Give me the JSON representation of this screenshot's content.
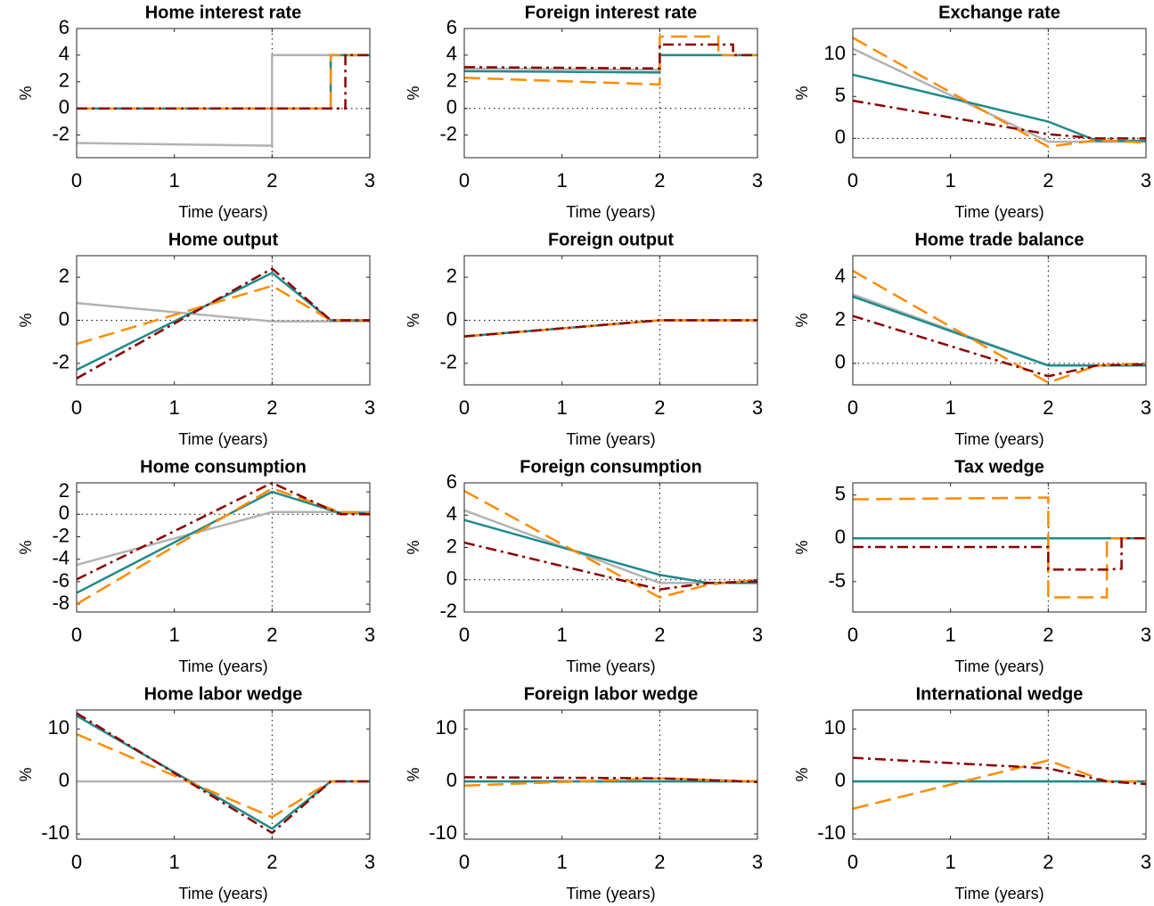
{
  "chart_data": [
    {
      "type": "line",
      "title": "Home interest rate",
      "xlabel": "Time (years)",
      "ylabel": "%",
      "xlim": [
        0,
        3
      ],
      "xticks": [
        0,
        1,
        2,
        3
      ],
      "ylim": [
        -3.7,
        6
      ],
      "yticks": [
        -2,
        0,
        2,
        4,
        6
      ],
      "hline": 0,
      "vline": 2,
      "x": [
        0,
        2,
        2,
        2.6,
        2.6,
        2.75,
        2.75,
        3
      ],
      "series": [
        {
          "color": "#b3b3b3",
          "dash": "solid",
          "values": [
            -2.6,
            -2.8,
            4,
            4,
            4,
            4,
            4,
            4
          ]
        },
        {
          "color": "#1f8a8a",
          "dash": "solid",
          "values": [
            0,
            0,
            0,
            0,
            4,
            4,
            4,
            4
          ]
        },
        {
          "color": "#ff8c00",
          "dash": "dashed",
          "values": [
            0,
            0,
            0,
            0,
            4,
            4,
            4,
            4
          ]
        },
        {
          "color": "#8b0000",
          "dash": "dashdot",
          "values": [
            0,
            0,
            0,
            0,
            0,
            0,
            4,
            4
          ]
        }
      ]
    },
    {
      "type": "line",
      "title": "Foreign interest rate",
      "xlabel": "Time (years)",
      "ylabel": "%",
      "xlim": [
        0,
        3
      ],
      "xticks": [
        0,
        1,
        2,
        3
      ],
      "ylim": [
        -3.7,
        6
      ],
      "yticks": [
        -2,
        0,
        2,
        4,
        6
      ],
      "hline": 0,
      "vline": 2,
      "x": [
        0,
        2,
        2,
        2.6,
        2.6,
        2.75,
        2.75,
        3
      ],
      "series": [
        {
          "color": "#b3b3b3",
          "dash": "solid",
          "values": [
            3.0,
            2.9,
            4,
            4,
            4,
            4,
            4,
            4
          ]
        },
        {
          "color": "#1f8a8a",
          "dash": "solid",
          "values": [
            2.8,
            2.7,
            4,
            4,
            4,
            4,
            4,
            4
          ]
        },
        {
          "color": "#ff8c00",
          "dash": "dashed",
          "values": [
            2.3,
            1.8,
            5.4,
            5.4,
            4,
            4,
            4,
            4
          ]
        },
        {
          "color": "#8b0000",
          "dash": "dashdot",
          "values": [
            3.1,
            3.0,
            4.8,
            4.8,
            4.8,
            4.8,
            4,
            4
          ]
        }
      ]
    },
    {
      "type": "line",
      "title": "Exchange rate",
      "xlabel": "Time (years)",
      "ylabel": "%",
      "xlim": [
        0,
        3
      ],
      "xticks": [
        0,
        1,
        2,
        3
      ],
      "ylim": [
        -2.3,
        13.1
      ],
      "yticks": [
        0,
        5,
        10
      ],
      "hline": 0,
      "vline": 2,
      "x": [
        0,
        2,
        2.5,
        3
      ],
      "series": [
        {
          "color": "#b3b3b3",
          "dash": "solid",
          "values": [
            10.7,
            -0.4,
            -0.4,
            -0.4
          ]
        },
        {
          "color": "#1f8a8a",
          "dash": "solid",
          "values": [
            7.6,
            2.0,
            -0.3,
            -0.3
          ]
        },
        {
          "color": "#ff8c00",
          "dash": "dashed",
          "values": [
            12.0,
            -1.0,
            -0.2,
            -0.5
          ]
        },
        {
          "color": "#8b0000",
          "dash": "dashdot",
          "values": [
            4.5,
            0.5,
            0,
            0
          ]
        }
      ]
    },
    {
      "type": "line",
      "title": "Home output",
      "xlabel": "Time (years)",
      "ylabel": "%",
      "xlim": [
        0,
        3
      ],
      "xticks": [
        0,
        1,
        2,
        3
      ],
      "ylim": [
        -3,
        3
      ],
      "yticks": [
        -2,
        0,
        2
      ],
      "hline": 0,
      "vline": 2,
      "x": [
        0,
        2,
        2.6,
        3
      ],
      "series": [
        {
          "color": "#b3b3b3",
          "dash": "solid",
          "values": [
            0.8,
            -0.05,
            -0.05,
            -0.05
          ]
        },
        {
          "color": "#1f8a8a",
          "dash": "solid",
          "values": [
            -2.3,
            2.2,
            0,
            0
          ]
        },
        {
          "color": "#ff8c00",
          "dash": "dashed",
          "values": [
            -1.1,
            1.6,
            0,
            0
          ]
        },
        {
          "color": "#8b0000",
          "dash": "dashdot",
          "values": [
            -2.7,
            2.4,
            0,
            0
          ]
        }
      ]
    },
    {
      "type": "line",
      "title": "Foreign output",
      "xlabel": "Time (years)",
      "ylabel": "%",
      "xlim": [
        0,
        3
      ],
      "xticks": [
        0,
        1,
        2,
        3
      ],
      "ylim": [
        -3,
        3
      ],
      "yticks": [
        -2,
        0,
        2
      ],
      "hline": 0,
      "vline": 2,
      "x": [
        0,
        2,
        3
      ],
      "series": [
        {
          "color": "#b3b3b3",
          "dash": "solid",
          "values": [
            -0.75,
            0,
            0
          ]
        },
        {
          "color": "#1f8a8a",
          "dash": "solid",
          "values": [
            -0.75,
            0,
            0
          ]
        },
        {
          "color": "#ff8c00",
          "dash": "dashed",
          "values": [
            -0.75,
            0,
            0
          ]
        },
        {
          "color": "#8b0000",
          "dash": "dashdot",
          "values": [
            -0.75,
            0,
            0
          ]
        }
      ]
    },
    {
      "type": "line",
      "title": "Home trade balance",
      "xlabel": "Time (years)",
      "ylabel": "%",
      "xlim": [
        0,
        3
      ],
      "xticks": [
        0,
        1,
        2,
        3
      ],
      "ylim": [
        -1,
        5
      ],
      "yticks": [
        0,
        2,
        4
      ],
      "hline": 0,
      "vline": 2,
      "x": [
        0,
        2,
        2.5,
        3
      ],
      "series": [
        {
          "color": "#b3b3b3",
          "dash": "solid",
          "values": [
            3.2,
            -0.1,
            -0.1,
            -0.1
          ]
        },
        {
          "color": "#1f8a8a",
          "dash": "solid",
          "values": [
            3.1,
            -0.1,
            -0.1,
            -0.1
          ]
        },
        {
          "color": "#ff8c00",
          "dash": "dashed",
          "values": [
            4.3,
            -0.9,
            -0.1,
            0
          ]
        },
        {
          "color": "#8b0000",
          "dash": "dashdot",
          "values": [
            2.2,
            -0.6,
            -0.1,
            -0.05
          ]
        }
      ]
    },
    {
      "type": "line",
      "title": "Home consumption",
      "xlabel": "Time (years)",
      "ylabel": "%",
      "xlim": [
        0,
        3
      ],
      "xticks": [
        0,
        1,
        2,
        3
      ],
      "ylim": [
        -8.7,
        2.8
      ],
      "yticks": [
        -8,
        -6,
        -4,
        -2,
        0,
        2
      ],
      "hline": 0,
      "vline": 2,
      "x": [
        0,
        2,
        2.7,
        3
      ],
      "series": [
        {
          "color": "#b3b3b3",
          "dash": "solid",
          "values": [
            -4.5,
            0.2,
            0.2,
            0.2
          ]
        },
        {
          "color": "#1f8a8a",
          "dash": "solid",
          "values": [
            -7.0,
            2.0,
            0.1,
            0.1
          ]
        },
        {
          "color": "#ff8c00",
          "dash": "dashed",
          "values": [
            -8.0,
            2.3,
            0.2,
            0.1
          ]
        },
        {
          "color": "#8b0000",
          "dash": "dashdot",
          "values": [
            -5.8,
            2.8,
            0,
            0
          ]
        }
      ]
    },
    {
      "type": "line",
      "title": "Foreign consumption",
      "xlabel": "Time (years)",
      "ylabel": "%",
      "xlim": [
        0,
        3
      ],
      "xticks": [
        0,
        1,
        2,
        3
      ],
      "ylim": [
        -2,
        6
      ],
      "yticks": [
        -2,
        0,
        2,
        4,
        6
      ],
      "hline": 0,
      "vline": 2,
      "x": [
        0,
        2,
        2.5,
        3
      ],
      "series": [
        {
          "color": "#b3b3b3",
          "dash": "solid",
          "values": [
            4.3,
            -0.2,
            -0.2,
            -0.2
          ]
        },
        {
          "color": "#1f8a8a",
          "dash": "solid",
          "values": [
            3.7,
            0.3,
            -0.2,
            -0.2
          ]
        },
        {
          "color": "#ff8c00",
          "dash": "dashed",
          "values": [
            5.5,
            -1.1,
            -0.3,
            0
          ]
        },
        {
          "color": "#8b0000",
          "dash": "dashdot",
          "values": [
            2.3,
            -0.6,
            -0.2,
            -0.1
          ]
        }
      ]
    },
    {
      "type": "line",
      "title": "Tax wedge",
      "xlabel": "Time (years)",
      "ylabel": "%",
      "xlim": [
        0,
        3
      ],
      "xticks": [
        0,
        1,
        2,
        3
      ],
      "ylim": [
        -8.5,
        6.4
      ],
      "yticks": [
        -5,
        0,
        5
      ],
      "hline": 0,
      "vline": 2,
      "x": [
        0,
        2,
        2,
        2.6,
        2.6,
        2.75,
        2.75,
        3
      ],
      "series": [
        {
          "color": "#b3b3b3",
          "dash": "solid",
          "values": [
            0,
            0,
            0,
            0,
            0,
            0,
            0,
            0
          ]
        },
        {
          "color": "#1f8a8a",
          "dash": "solid",
          "values": [
            0,
            0,
            0,
            0,
            0,
            0,
            0,
            0
          ]
        },
        {
          "color": "#ff8c00",
          "dash": "dashed",
          "values": [
            4.5,
            4.7,
            -6.8,
            -6.8,
            0,
            0,
            0,
            0
          ]
        },
        {
          "color": "#8b0000",
          "dash": "dashdot",
          "values": [
            -1,
            -1,
            -3.6,
            -3.6,
            -3.6,
            -3.5,
            0,
            0
          ]
        }
      ]
    },
    {
      "type": "line",
      "title": "Home labor wedge",
      "xlabel": "Time (years)",
      "ylabel": "%",
      "xlim": [
        0,
        3
      ],
      "xticks": [
        0,
        1,
        2,
        3
      ],
      "ylim": [
        -11,
        13.6
      ],
      "yticks": [
        -10,
        0,
        10
      ],
      "hline": 0,
      "vline": 2,
      "x": [
        0,
        2,
        2.6,
        3
      ],
      "series": [
        {
          "color": "#b3b3b3",
          "dash": "solid",
          "values": [
            0,
            0,
            0,
            0
          ]
        },
        {
          "color": "#1f8a8a",
          "dash": "solid",
          "values": [
            12.5,
            -9,
            0,
            0
          ]
        },
        {
          "color": "#ff8c00",
          "dash": "dashed",
          "values": [
            9,
            -6.8,
            0,
            0
          ]
        },
        {
          "color": "#8b0000",
          "dash": "dashdot",
          "values": [
            13,
            -9.8,
            0,
            0
          ]
        }
      ]
    },
    {
      "type": "line",
      "title": "Foreign labor wedge",
      "xlabel": "Time (years)",
      "ylabel": "%",
      "xlim": [
        0,
        3
      ],
      "xticks": [
        0,
        1,
        2,
        3
      ],
      "ylim": [
        -11,
        13.6
      ],
      "yticks": [
        -10,
        0,
        10
      ],
      "hline": 0,
      "vline": 2,
      "x": [
        0,
        2,
        3
      ],
      "series": [
        {
          "color": "#b3b3b3",
          "dash": "solid",
          "values": [
            0,
            0,
            0
          ]
        },
        {
          "color": "#1f8a8a",
          "dash": "solid",
          "values": [
            0,
            0,
            0
          ]
        },
        {
          "color": "#ff8c00",
          "dash": "dashed",
          "values": [
            -0.8,
            0.6,
            0
          ]
        },
        {
          "color": "#8b0000",
          "dash": "dashdot",
          "values": [
            0.8,
            0.6,
            -0.1
          ]
        }
      ]
    },
    {
      "type": "line",
      "title": "International wedge",
      "xlabel": "Time (years)",
      "ylabel": "%",
      "xlim": [
        0,
        3
      ],
      "xticks": [
        0,
        1,
        2,
        3
      ],
      "ylim": [
        -11,
        13.6
      ],
      "yticks": [
        -10,
        0,
        10
      ],
      "hline": 0,
      "vline": 2,
      "x": [
        0,
        2,
        2.6,
        3
      ],
      "series": [
        {
          "color": "#b3b3b3",
          "dash": "solid",
          "values": [
            0,
            0,
            0,
            0
          ]
        },
        {
          "color": "#1f8a8a",
          "dash": "solid",
          "values": [
            0,
            0,
            0,
            0
          ]
        },
        {
          "color": "#ff8c00",
          "dash": "dashed",
          "values": [
            -5.2,
            4,
            0,
            0
          ]
        },
        {
          "color": "#8b0000",
          "dash": "dashdot",
          "values": [
            4.5,
            2.5,
            0,
            -0.5
          ]
        }
      ]
    }
  ]
}
